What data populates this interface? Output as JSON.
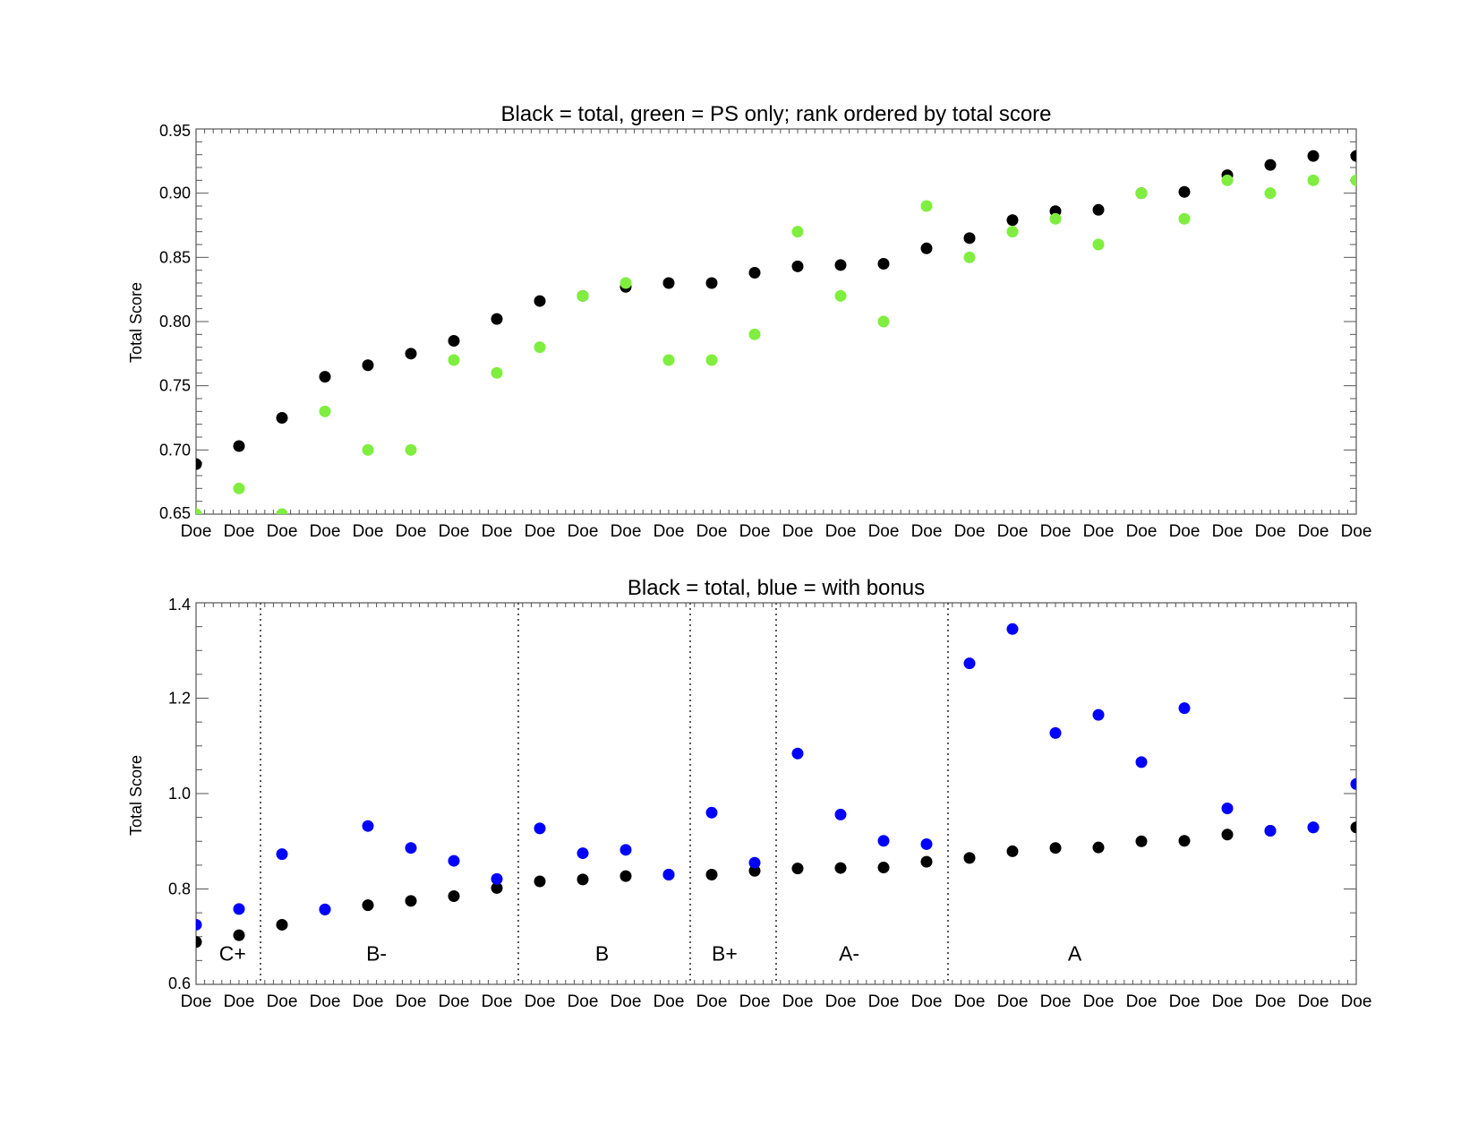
{
  "chart_data": [
    {
      "type": "scatter",
      "title": "Black = total, green = PS only; rank ordered by total score",
      "ylabel": "Total Score",
      "ylim": [
        0.65,
        0.95
      ],
      "yticks": [
        "0.65",
        "0.70",
        "0.75",
        "0.80",
        "0.85",
        "0.90",
        "0.95"
      ],
      "ytick_values": [
        0.65,
        0.7,
        0.75,
        0.8,
        0.85,
        0.9,
        0.95
      ],
      "categories": [
        "Doe",
        "Doe",
        "Doe",
        "Doe",
        "Doe",
        "Doe",
        "Doe",
        "Doe",
        "Doe",
        "Doe",
        "Doe",
        "Doe",
        "Doe",
        "Doe",
        "Doe",
        "Doe",
        "Doe",
        "Doe",
        "Doe",
        "Doe",
        "Doe",
        "Doe",
        "Doe",
        "Doe",
        "Doe",
        "Doe",
        "Doe",
        "Doe"
      ],
      "series": [
        {
          "color": "#000000",
          "values": [
            0.689,
            0.703,
            0.725,
            0.757,
            0.766,
            0.775,
            0.785,
            0.802,
            0.816,
            0.82,
            0.827,
            0.83,
            0.83,
            0.838,
            0.843,
            0.844,
            0.845,
            0.857,
            0.865,
            0.879,
            0.886,
            0.887,
            0.9,
            0.901,
            0.914,
            0.922,
            0.929,
            0.929
          ]
        },
        {
          "color": "#7fee3e",
          "values": [
            0.65,
            0.67,
            0.65,
            0.73,
            0.7,
            0.7,
            0.77,
            0.76,
            0.78,
            0.82,
            0.83,
            0.77,
            0.77,
            0.79,
            0.87,
            0.82,
            0.8,
            0.89,
            0.85,
            0.87,
            0.88,
            0.86,
            0.9,
            0.88,
            0.91,
            0.9,
            0.91,
            0.91
          ]
        }
      ]
    },
    {
      "type": "scatter",
      "title": "Black = total, blue = with bonus",
      "ylabel": "Total Score",
      "ylim": [
        0.6,
        1.4
      ],
      "yticks": [
        "0.6",
        "0.8",
        "1.0",
        "1.2",
        "1.4"
      ],
      "ytick_values": [
        0.6,
        0.8,
        1.0,
        1.2,
        1.4
      ],
      "categories": [
        "Doe",
        "Doe",
        "Doe",
        "Doe",
        "Doe",
        "Doe",
        "Doe",
        "Doe",
        "Doe",
        "Doe",
        "Doe",
        "Doe",
        "Doe",
        "Doe",
        "Doe",
        "Doe",
        "Doe",
        "Doe",
        "Doe",
        "Doe",
        "Doe",
        "Doe",
        "Doe",
        "Doe",
        "Doe",
        "Doe",
        "Doe",
        "Doe"
      ],
      "series": [
        {
          "color": "#000000",
          "values": [
            0.689,
            0.703,
            0.725,
            0.757,
            0.766,
            0.775,
            0.785,
            0.802,
            0.816,
            0.82,
            0.827,
            0.83,
            0.83,
            0.838,
            0.843,
            0.844,
            0.845,
            0.857,
            0.865,
            0.879,
            0.886,
            0.887,
            0.9,
            0.901,
            0.914,
            0.922,
            0.929,
            0.929
          ]
        },
        {
          "color": "#0000ff",
          "values": [
            0.725,
            0.758,
            0.873,
            0.757,
            0.932,
            0.886,
            0.859,
            0.821,
            0.927,
            0.875,
            0.882,
            0.83,
            0.96,
            0.855,
            1.084,
            0.956,
            0.901,
            0.894,
            1.273,
            1.345,
            1.127,
            1.165,
            1.066,
            1.179,
            0.969,
            0.922,
            0.929,
            1.02
          ]
        }
      ],
      "grade_dividers": [
        1.5,
        7.5,
        11.5,
        13.5,
        17.5
      ],
      "grade_labels": [
        {
          "text": "C+",
          "x": 0.85
        },
        {
          "text": "B-",
          "x": 4.2
        },
        {
          "text": "B",
          "x": 9.45
        },
        {
          "text": "B+",
          "x": 12.3
        },
        {
          "text": "A-",
          "x": 15.2
        },
        {
          "text": "A",
          "x": 20.45
        }
      ],
      "grade_label_y": 0.665
    }
  ]
}
